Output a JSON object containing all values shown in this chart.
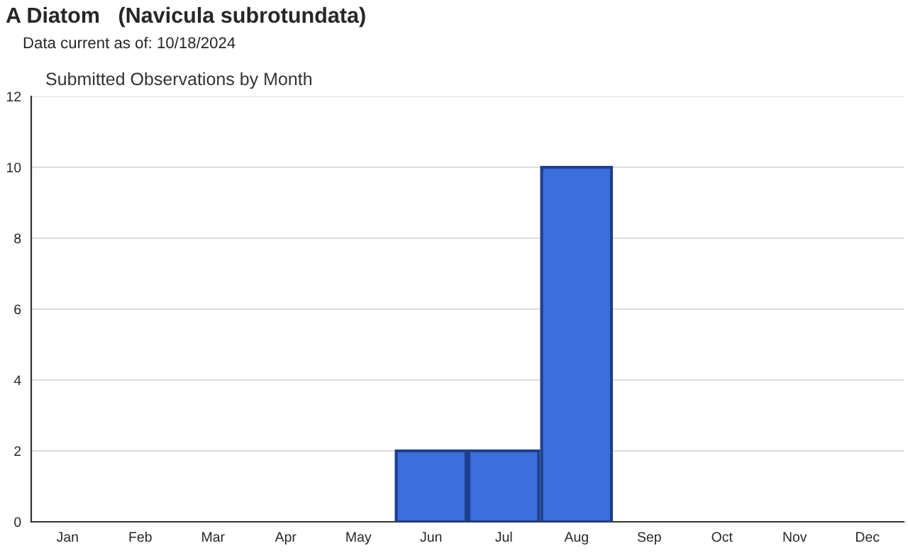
{
  "chart_data": {
    "type": "bar",
    "title": "A Diatom   (Navicula subrotundata)",
    "subtitle": "Data current as of: 10/18/2024",
    "annotations": [
      "Submitted Observations by Month"
    ],
    "categories": [
      "Jan",
      "Feb",
      "Mar",
      "Apr",
      "May",
      "Jun",
      "Jul",
      "Aug",
      "Sep",
      "Oct",
      "Nov",
      "Dec"
    ],
    "values": [
      0,
      0,
      0,
      0,
      0,
      2,
      2,
      10,
      0,
      0,
      0,
      0
    ],
    "color": "#3c6fdc",
    "ylim": [
      0,
      12
    ],
    "yticks": [
      0,
      2,
      4,
      6,
      8,
      10,
      12
    ],
    "grid": "y",
    "legend": false
  }
}
